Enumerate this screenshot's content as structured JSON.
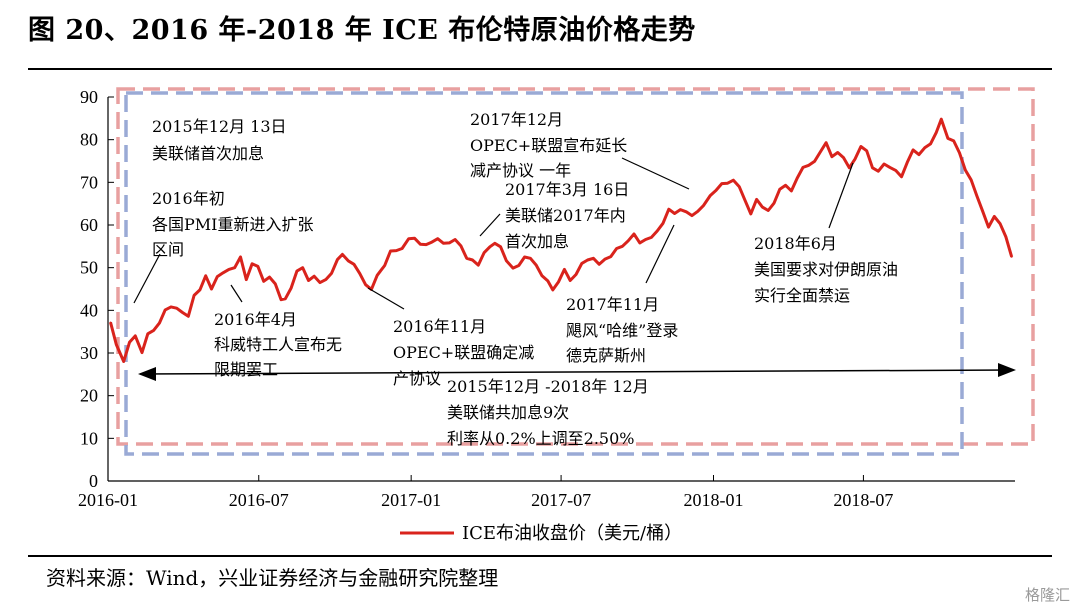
{
  "figure": {
    "title": "图 20、2016 年-2018 年 ICE 布伦特原油价格走势",
    "source": "资料来源：Wind，兴业证券经济与金融研究院整理",
    "watermark": "格隆汇"
  },
  "chart_data": {
    "type": "line",
    "title": "图 20、2016 年-2018 年 ICE 布伦特原油价格走势",
    "xlabel": "",
    "ylabel": "",
    "ylim": [
      0,
      90
    ],
    "yticks": [
      0,
      10,
      20,
      30,
      40,
      50,
      60,
      70,
      80,
      90
    ],
    "xrange": [
      "2016-01",
      "2018-12"
    ],
    "xticks": [
      "2016-01",
      "2016-07",
      "2017-01",
      "2017-07",
      "2018-01",
      "2018-07"
    ],
    "legend": {
      "label": "ICE布油收盘价（美元/桶）",
      "position": "bottom"
    },
    "grid": false,
    "line_color": "#d9231c",
    "series": [
      {
        "name": "ICE布油收盘价（美元/桶）",
        "x": [
          "2016-01-04",
          "2016-01-11",
          "2016-01-20",
          "2016-01-27",
          "2016-02-03",
          "2016-02-11",
          "2016-02-18",
          "2016-02-25",
          "2016-03-03",
          "2016-03-10",
          "2016-03-17",
          "2016-03-24",
          "2016-03-31",
          "2016-04-07",
          "2016-04-14",
          "2016-04-21",
          "2016-04-28",
          "2016-05-05",
          "2016-05-12",
          "2016-05-19",
          "2016-05-26",
          "2016-06-02",
          "2016-06-09",
          "2016-06-16",
          "2016-06-23",
          "2016-06-30",
          "2016-07-07",
          "2016-07-14",
          "2016-07-21",
          "2016-07-28",
          "2016-08-02",
          "2016-08-09",
          "2016-08-16",
          "2016-08-23",
          "2016-08-30",
          "2016-09-06",
          "2016-09-13",
          "2016-09-20",
          "2016-09-27",
          "2016-10-04",
          "2016-10-10",
          "2016-10-17",
          "2016-10-24",
          "2016-10-31",
          "2016-11-07",
          "2016-11-14",
          "2016-11-21",
          "2016-11-30",
          "2016-12-07",
          "2016-12-14",
          "2016-12-21",
          "2016-12-29",
          "2017-01-05",
          "2017-01-12",
          "2017-01-19",
          "2017-01-26",
          "2017-02-02",
          "2017-02-09",
          "2017-02-16",
          "2017-02-23",
          "2017-03-02",
          "2017-03-09",
          "2017-03-16",
          "2017-03-23",
          "2017-03-30",
          "2017-04-06",
          "2017-04-12",
          "2017-04-19",
          "2017-04-26",
          "2017-05-04",
          "2017-05-11",
          "2017-05-18",
          "2017-05-25",
          "2017-06-01",
          "2017-06-08",
          "2017-06-15",
          "2017-06-21",
          "2017-06-28",
          "2017-07-05",
          "2017-07-12",
          "2017-07-19",
          "2017-07-26",
          "2017-08-02",
          "2017-08-09",
          "2017-08-16",
          "2017-08-23",
          "2017-08-30",
          "2017-09-06",
          "2017-09-13",
          "2017-09-20",
          "2017-09-27",
          "2017-10-04",
          "2017-10-11",
          "2017-10-18",
          "2017-10-25",
          "2017-11-01",
          "2017-11-08",
          "2017-11-15",
          "2017-11-22",
          "2017-11-29",
          "2017-12-06",
          "2017-12-13",
          "2017-12-20",
          "2017-12-28",
          "2018-01-04",
          "2018-01-11",
          "2018-01-18",
          "2018-01-25",
          "2018-02-01",
          "2018-02-08",
          "2018-02-15",
          "2018-02-22",
          "2018-03-01",
          "2018-03-08",
          "2018-03-15",
          "2018-03-22",
          "2018-03-29",
          "2018-04-05",
          "2018-04-12",
          "2018-04-19",
          "2018-04-26",
          "2018-05-03",
          "2018-05-10",
          "2018-05-17",
          "2018-05-24",
          "2018-05-31",
          "2018-06-07",
          "2018-06-14",
          "2018-06-21",
          "2018-06-28",
          "2018-07-05",
          "2018-07-12",
          "2018-07-19",
          "2018-07-26",
          "2018-08-02",
          "2018-08-09",
          "2018-08-16",
          "2018-08-23",
          "2018-08-30",
          "2018-09-06",
          "2018-09-13",
          "2018-09-20",
          "2018-09-27",
          "2018-10-03",
          "2018-10-11",
          "2018-10-18",
          "2018-10-25",
          "2018-11-01",
          "2018-11-08",
          "2018-11-15",
          "2018-11-22",
          "2018-11-29",
          "2018-12-06",
          "2018-12-13",
          "2018-12-20",
          "2018-12-27"
        ],
        "y": [
          37.2,
          32.0,
          28.0,
          32.5,
          34.0,
          30.1,
          34.5,
          35.3,
          37.0,
          40.1,
          40.8,
          40.5,
          39.5,
          38.6,
          43.5,
          44.8,
          48.1,
          45.0,
          47.9,
          48.8,
          49.6,
          50.0,
          52.5,
          47.2,
          50.9,
          50.3,
          46.8,
          47.8,
          46.2,
          42.5,
          42.7,
          45.2,
          49.2,
          50.0,
          47.0,
          48.0,
          46.5,
          47.2,
          48.7,
          51.9,
          53.1,
          51.6,
          50.8,
          48.6,
          46.0,
          44.9,
          48.2,
          50.5,
          53.9,
          54.0,
          54.5,
          56.8,
          56.9,
          55.5,
          55.4,
          56.0,
          56.8,
          55.7,
          55.8,
          56.6,
          55.1,
          52.2,
          51.8,
          50.6,
          53.5,
          54.9,
          55.7,
          54.9,
          51.6,
          49.9,
          50.5,
          52.5,
          52.2,
          50.6,
          48.1,
          46.9,
          44.8,
          46.7,
          49.6,
          47.0,
          48.4,
          51.0,
          51.8,
          52.2,
          50.8,
          52.0,
          52.6,
          54.5,
          55.0,
          56.3,
          57.9,
          55.8,
          56.6,
          57.1,
          58.6,
          60.4,
          63.7,
          62.7,
          63.6,
          63.1,
          62.2,
          63.2,
          64.6,
          66.9,
          68.1,
          69.7,
          69.8,
          70.5,
          69.0,
          65.8,
          62.6,
          66.0,
          64.2,
          63.4,
          65.1,
          68.4,
          69.3,
          68.0,
          71.0,
          73.5,
          74.0,
          74.9,
          77.1,
          79.3,
          76.0,
          77.0,
          75.8,
          73.4,
          75.5,
          78.4,
          77.4,
          73.4,
          72.6,
          74.3,
          73.5,
          72.8,
          71.3,
          74.7,
          77.6,
          76.5,
          78.1,
          79.0,
          81.7,
          84.8,
          80.3,
          79.7,
          76.9,
          72.9,
          70.6,
          66.8,
          63.2,
          59.5,
          62.0,
          60.3,
          57.2,
          52.5
        ]
      }
    ],
    "annotations": [
      {
        "lines": [
          "2015年12月 13日",
          "美联储首次加息"
        ]
      },
      {
        "lines": [
          "2016年初",
          "各国PMI重新进入扩张",
          "区间"
        ]
      },
      {
        "lines": [
          "2016年4月",
          "科威特工人宣布无",
          "限期罢工"
        ]
      },
      {
        "lines": [
          "2016年11月",
          "OPEC+联盟确定减",
          "产协议"
        ]
      },
      {
        "lines": [
          "2017年3月 16日",
          "美联储2017年内",
          "首次加息"
        ]
      },
      {
        "lines": [
          "2017年12月",
          "OPEC+联盟宣布延长",
          "减产协议 一年"
        ]
      },
      {
        "lines": [
          "2017年11月",
          "飓风“哈维”登录",
          "德克萨斯州"
        ]
      },
      {
        "lines": [
          "2018年6月",
          "美国要求对伊朗原油",
          "实行全面禁运"
        ]
      },
      {
        "lines": [
          "2015年12月 -2018年 12月",
          "美联储共加息9次",
          "利率从0.2%上调至2.50%"
        ]
      }
    ]
  }
}
